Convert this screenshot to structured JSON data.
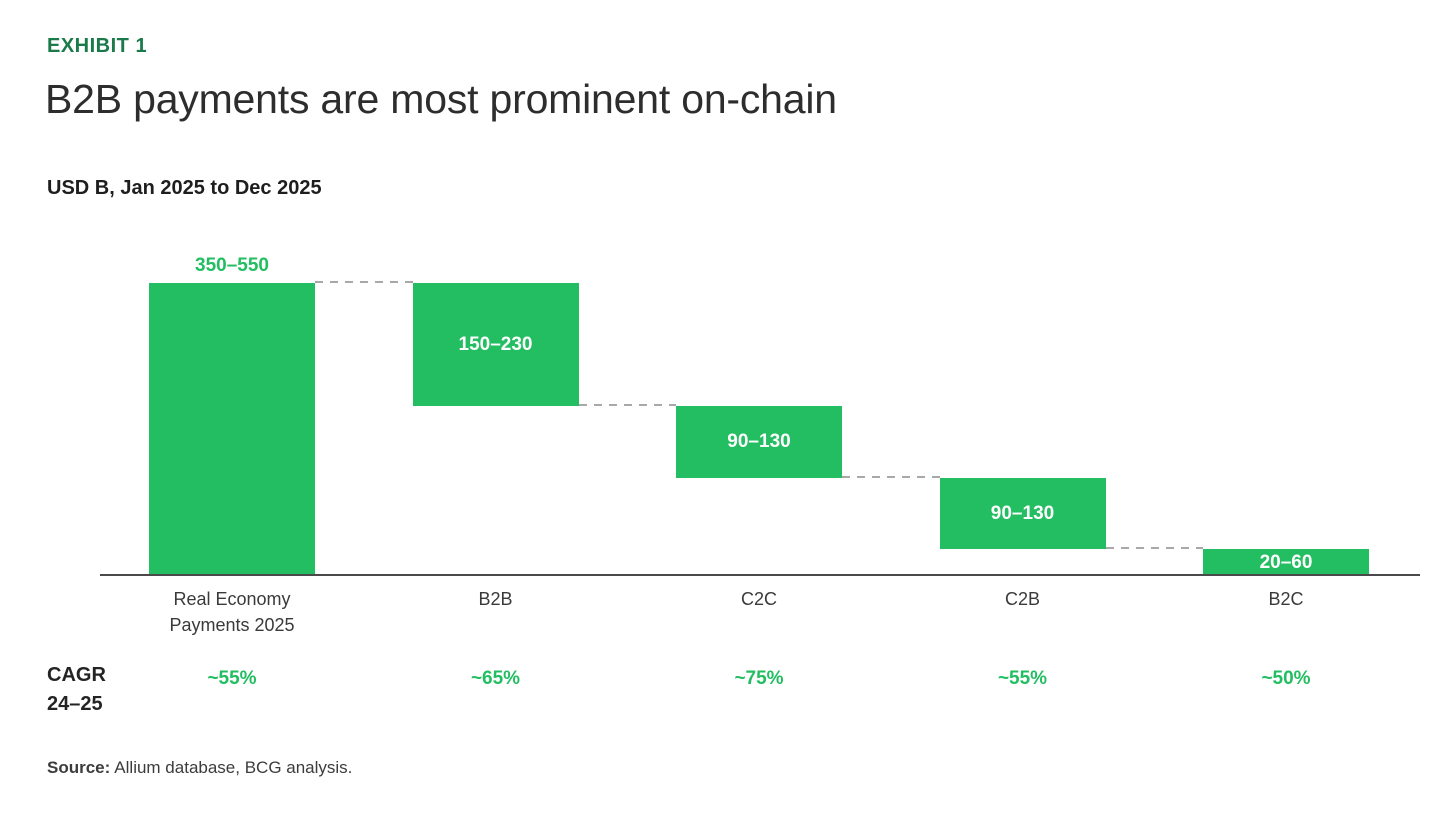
{
  "header": {
    "exhibit_label": "EXHIBIT 1",
    "title": "B2B payments are most prominent on-chain",
    "subtitle": "USD B, Jan 2025 to Dec 2025"
  },
  "cagr": {
    "row_label_line1": "CAGR",
    "row_label_line2": "24–25"
  },
  "source": {
    "label": "Source:",
    "text": "Allium database, BCG analysis."
  },
  "colors": {
    "bar_green": "#22BE61",
    "exhibit_green": "#1A7A4A",
    "connector_gray": "#A8A8A8",
    "axis_gray": "#4A4A4A",
    "title_dark": "#2D2D2D"
  },
  "chart_data": {
    "type": "bar",
    "subtype": "waterfall",
    "title": "B2B payments are most prominent on-chain",
    "unit": "USD B",
    "period": "Jan 2025 to Dec 2025",
    "categories": [
      "Real Economy Payments 2025",
      "B2B",
      "C2C",
      "C2B",
      "B2C"
    ],
    "value_labels": [
      "350–550",
      "150–230",
      "90–130",
      "90–130",
      "20–60"
    ],
    "value_ranges": [
      [
        350,
        550
      ],
      [
        150,
        230
      ],
      [
        90,
        130
      ],
      [
        90,
        130
      ],
      [
        20,
        60
      ]
    ],
    "midpoint_values": [
      450,
      190,
      110,
      110,
      40
    ],
    "cumulative_segments": [
      [
        0,
        450
      ],
      [
        450,
        260
      ],
      [
        260,
        150
      ],
      [
        150,
        40
      ],
      [
        40,
        0
      ]
    ],
    "cagr_24_25": [
      "~55%",
      "~65%",
      "~75%",
      "~55%",
      "~50%"
    ],
    "ylim": [
      0,
      450
    ],
    "grid": false,
    "legend": false,
    "connector_style": "dashed"
  }
}
